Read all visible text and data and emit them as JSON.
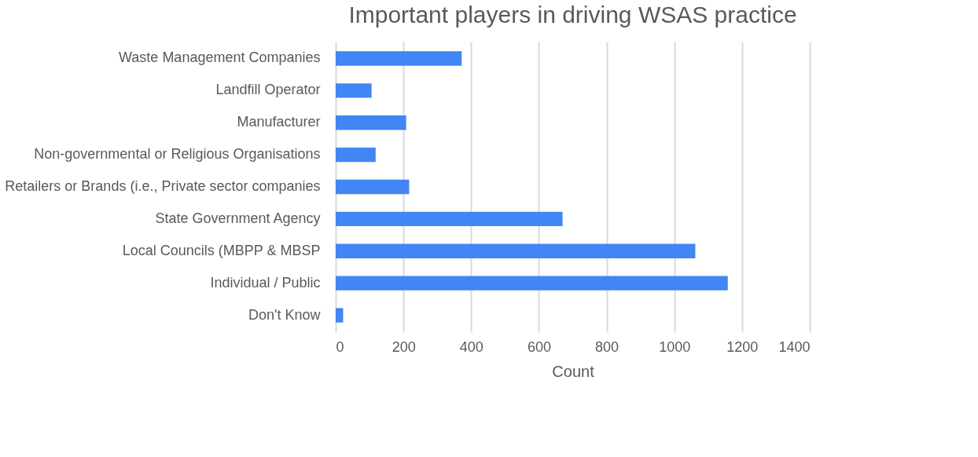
{
  "chart_data": {
    "type": "bar",
    "orientation": "horizontal",
    "title": "Important players in driving WSAS practice",
    "xlabel": "Count",
    "categories": [
      "Waste Management Companies",
      "Landfill Operator",
      "Manufacturer",
      "Non-governmental or Religious Organisations",
      "Retailers or Brands (i.e., Private sector companies",
      "State Government Agency",
      "Local Councils (MBPP & MBSP",
      "Individual / Public",
      "Don't Know"
    ],
    "values": [
      372,
      106,
      208,
      118,
      217,
      670,
      1062,
      1158,
      22
    ],
    "color": "#4285f4",
    "xlim": [
      0,
      1400
    ],
    "xticks": [
      0,
      200,
      400,
      600,
      800,
      1000,
      1200,
      1400
    ],
    "grid": "x"
  }
}
